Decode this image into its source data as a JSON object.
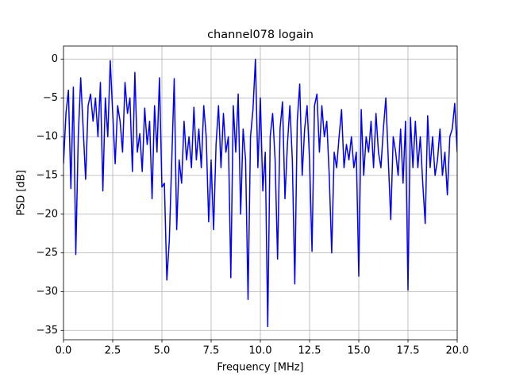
{
  "chart_data": {
    "type": "line",
    "title": "channel078 logain",
    "x_label": "Frequency [MHz]",
    "y_label": "PSD [dB]",
    "x": [
      0,
      0.125,
      0.25,
      0.375,
      0.5,
      0.625,
      0.75,
      0.875,
      1,
      1.125,
      1.25,
      1.375,
      1.5,
      1.625,
      1.75,
      1.875,
      2,
      2.125,
      2.25,
      2.375,
      2.5,
      2.625,
      2.75,
      2.875,
      3,
      3.125,
      3.25,
      3.375,
      3.5,
      3.625,
      3.75,
      3.875,
      4,
      4.125,
      4.25,
      4.375,
      4.5,
      4.625,
      4.75,
      4.875,
      5,
      5.125,
      5.25,
      5.375,
      5.5,
      5.625,
      5.75,
      5.875,
      6,
      6.125,
      6.25,
      6.375,
      6.5,
      6.625,
      6.75,
      6.875,
      7,
      7.125,
      7.25,
      7.375,
      7.5,
      7.625,
      7.75,
      7.875,
      8,
      8.125,
      8.25,
      8.375,
      8.5,
      8.625,
      8.75,
      8.875,
      9,
      9.125,
      9.25,
      9.375,
      9.5,
      9.625,
      9.75,
      9.875,
      10,
      10.125,
      10.25,
      10.375,
      10.5,
      10.625,
      10.75,
      10.875,
      11,
      11.125,
      11.25,
      11.375,
      11.5,
      11.625,
      11.75,
      11.875,
      12,
      12.125,
      12.25,
      12.375,
      12.5,
      12.625,
      12.75,
      12.875,
      13,
      13.125,
      13.25,
      13.375,
      13.5,
      13.625,
      13.75,
      13.875,
      14,
      14.125,
      14.25,
      14.375,
      14.5,
      14.625,
      14.75,
      14.875,
      15,
      15.125,
      15.25,
      15.375,
      15.5,
      15.625,
      15.75,
      15.875,
      16,
      16.125,
      16.25,
      16.375,
      16.5,
      16.625,
      16.75,
      16.875,
      17,
      17.125,
      17.25,
      17.375,
      17.5,
      17.625,
      17.75,
      17.875,
      18,
      18.125,
      18.25,
      18.375,
      18.5,
      18.625,
      18.75,
      18.875,
      19,
      19.125,
      19.25,
      19.375,
      19.5,
      19.625,
      19.75,
      19.875,
      20
    ],
    "series": [
      {
        "name": "channel078",
        "color": "#0000ff",
        "values": [
          -13.5,
          -7,
          -4,
          -16.7,
          -3.6,
          -25.2,
          -10,
          -2.4,
          -9,
          -15.5,
          -6,
          -4.5,
          -8,
          -5,
          -10,
          -3,
          -17,
          -5,
          -10,
          -0.2,
          -7,
          -13.5,
          -6,
          -8,
          -12,
          -3,
          -7,
          -5,
          -14.5,
          -1.7,
          -12,
          -9.6,
          -14.5,
          -6.3,
          -11,
          -8,
          -18,
          -6,
          -12,
          -2.4,
          -16.5,
          -16,
          -28.5,
          -23.4,
          -13,
          -2.5,
          -22,
          -13,
          -16,
          -8,
          -13,
          -10,
          -14,
          -6.2,
          -13,
          -9,
          -14,
          -6,
          -10,
          -21,
          -13,
          -22,
          -11,
          -6,
          -14,
          -7,
          -12,
          -10,
          -28.2,
          -6,
          -12,
          -4.5,
          -20,
          -9,
          -13,
          -31,
          -10,
          -6.5,
          0,
          -14,
          -5,
          -17,
          -12,
          -34.5,
          -10,
          -7,
          -13,
          -25.8,
          -9,
          -5.5,
          -18,
          -11,
          -6,
          -13,
          -29,
          -8,
          -3.2,
          -15,
          -9,
          -6,
          -13,
          -24.8,
          -6,
          -4.5,
          -12,
          -6,
          -10,
          -8,
          -15,
          -25,
          -12,
          -14,
          -10,
          -6.5,
          -14,
          -11,
          -13,
          -10,
          -14,
          -12,
          -28,
          -6.5,
          -15,
          -10,
          -12,
          -8,
          -14,
          -7,
          -12,
          -14,
          -9,
          -5,
          -13,
          -20.7,
          -10,
          -12,
          -15,
          -9,
          -16,
          -8,
          -29.8,
          -7.5,
          -14,
          -8,
          -14,
          -10,
          -16,
          -21.2,
          -7.3,
          -14,
          -10,
          -15,
          -13,
          -9,
          -15,
          -12,
          -17.5,
          -10,
          -9,
          -5.7,
          -12
        ]
      }
    ],
    "xlim": [
      0,
      20
    ],
    "ylim": [
      -36.2,
      1.7
    ],
    "xticks": [
      {
        "value": 0,
        "label": "0.0"
      },
      {
        "value": 2.5,
        "label": "2.5"
      },
      {
        "value": 5,
        "label": "5.0"
      },
      {
        "value": 7.5,
        "label": "7.5"
      },
      {
        "value": 10,
        "label": "10.0"
      },
      {
        "value": 12.5,
        "label": "12.5"
      },
      {
        "value": 15,
        "label": "15.0"
      },
      {
        "value": 17.5,
        "label": "17.5"
      },
      {
        "value": 20,
        "label": "20.0"
      }
    ],
    "yticks": [
      0,
      {
        "value": -5,
        "label": "−5"
      },
      {
        "value": -10,
        "label": "−10"
      },
      {
        "value": -15,
        "label": "−15"
      },
      {
        "value": -20,
        "label": "−20"
      },
      {
        "value": -25,
        "label": "−25"
      },
      {
        "value": -30,
        "label": "−30"
      },
      {
        "value": -35,
        "label": "−35"
      }
    ],
    "grid": true
  }
}
